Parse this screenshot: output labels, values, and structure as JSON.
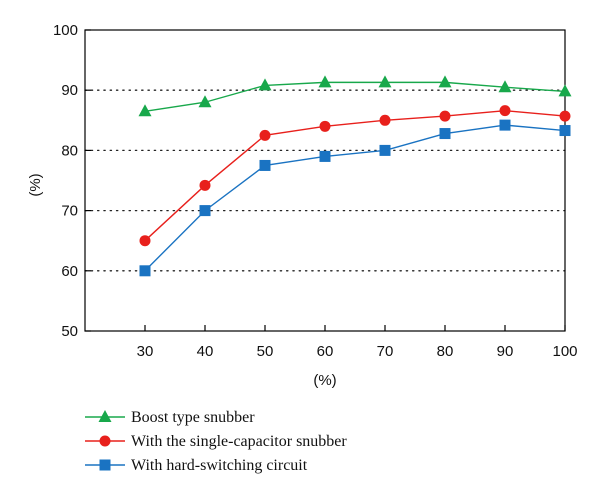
{
  "chart_data": {
    "type": "line",
    "xlabel": "(%)",
    "ylabel": "(%)",
    "x": [
      30,
      40,
      50,
      60,
      70,
      80,
      90,
      100
    ],
    "xlim": [
      20,
      100
    ],
    "ylim": [
      50,
      100
    ],
    "xticks": [
      "30",
      "40",
      "50",
      "60",
      "70",
      "80",
      "90",
      "100"
    ],
    "yticks": [
      "50",
      "60",
      "70",
      "80",
      "90",
      "100"
    ],
    "grid": "dotted horizontal",
    "legend_position": "bottom",
    "series": [
      {
        "name": "Boost type snubber",
        "color": "#18a84b",
        "marker": "triangle",
        "values": [
          86.5,
          88.0,
          90.8,
          91.3,
          91.3,
          91.3,
          90.5,
          89.8
        ]
      },
      {
        "name": "With the single-capacitor snubber",
        "color": "#e8201c",
        "marker": "circle",
        "values": [
          65.0,
          74.2,
          82.5,
          84.0,
          85.0,
          85.7,
          86.6,
          85.7
        ]
      },
      {
        "name": "With hard-switching circuit",
        "color": "#1a73c2",
        "marker": "square",
        "values": [
          60.0,
          70.0,
          77.5,
          79.0,
          80.0,
          82.8,
          84.2,
          83.3
        ]
      }
    ]
  }
}
